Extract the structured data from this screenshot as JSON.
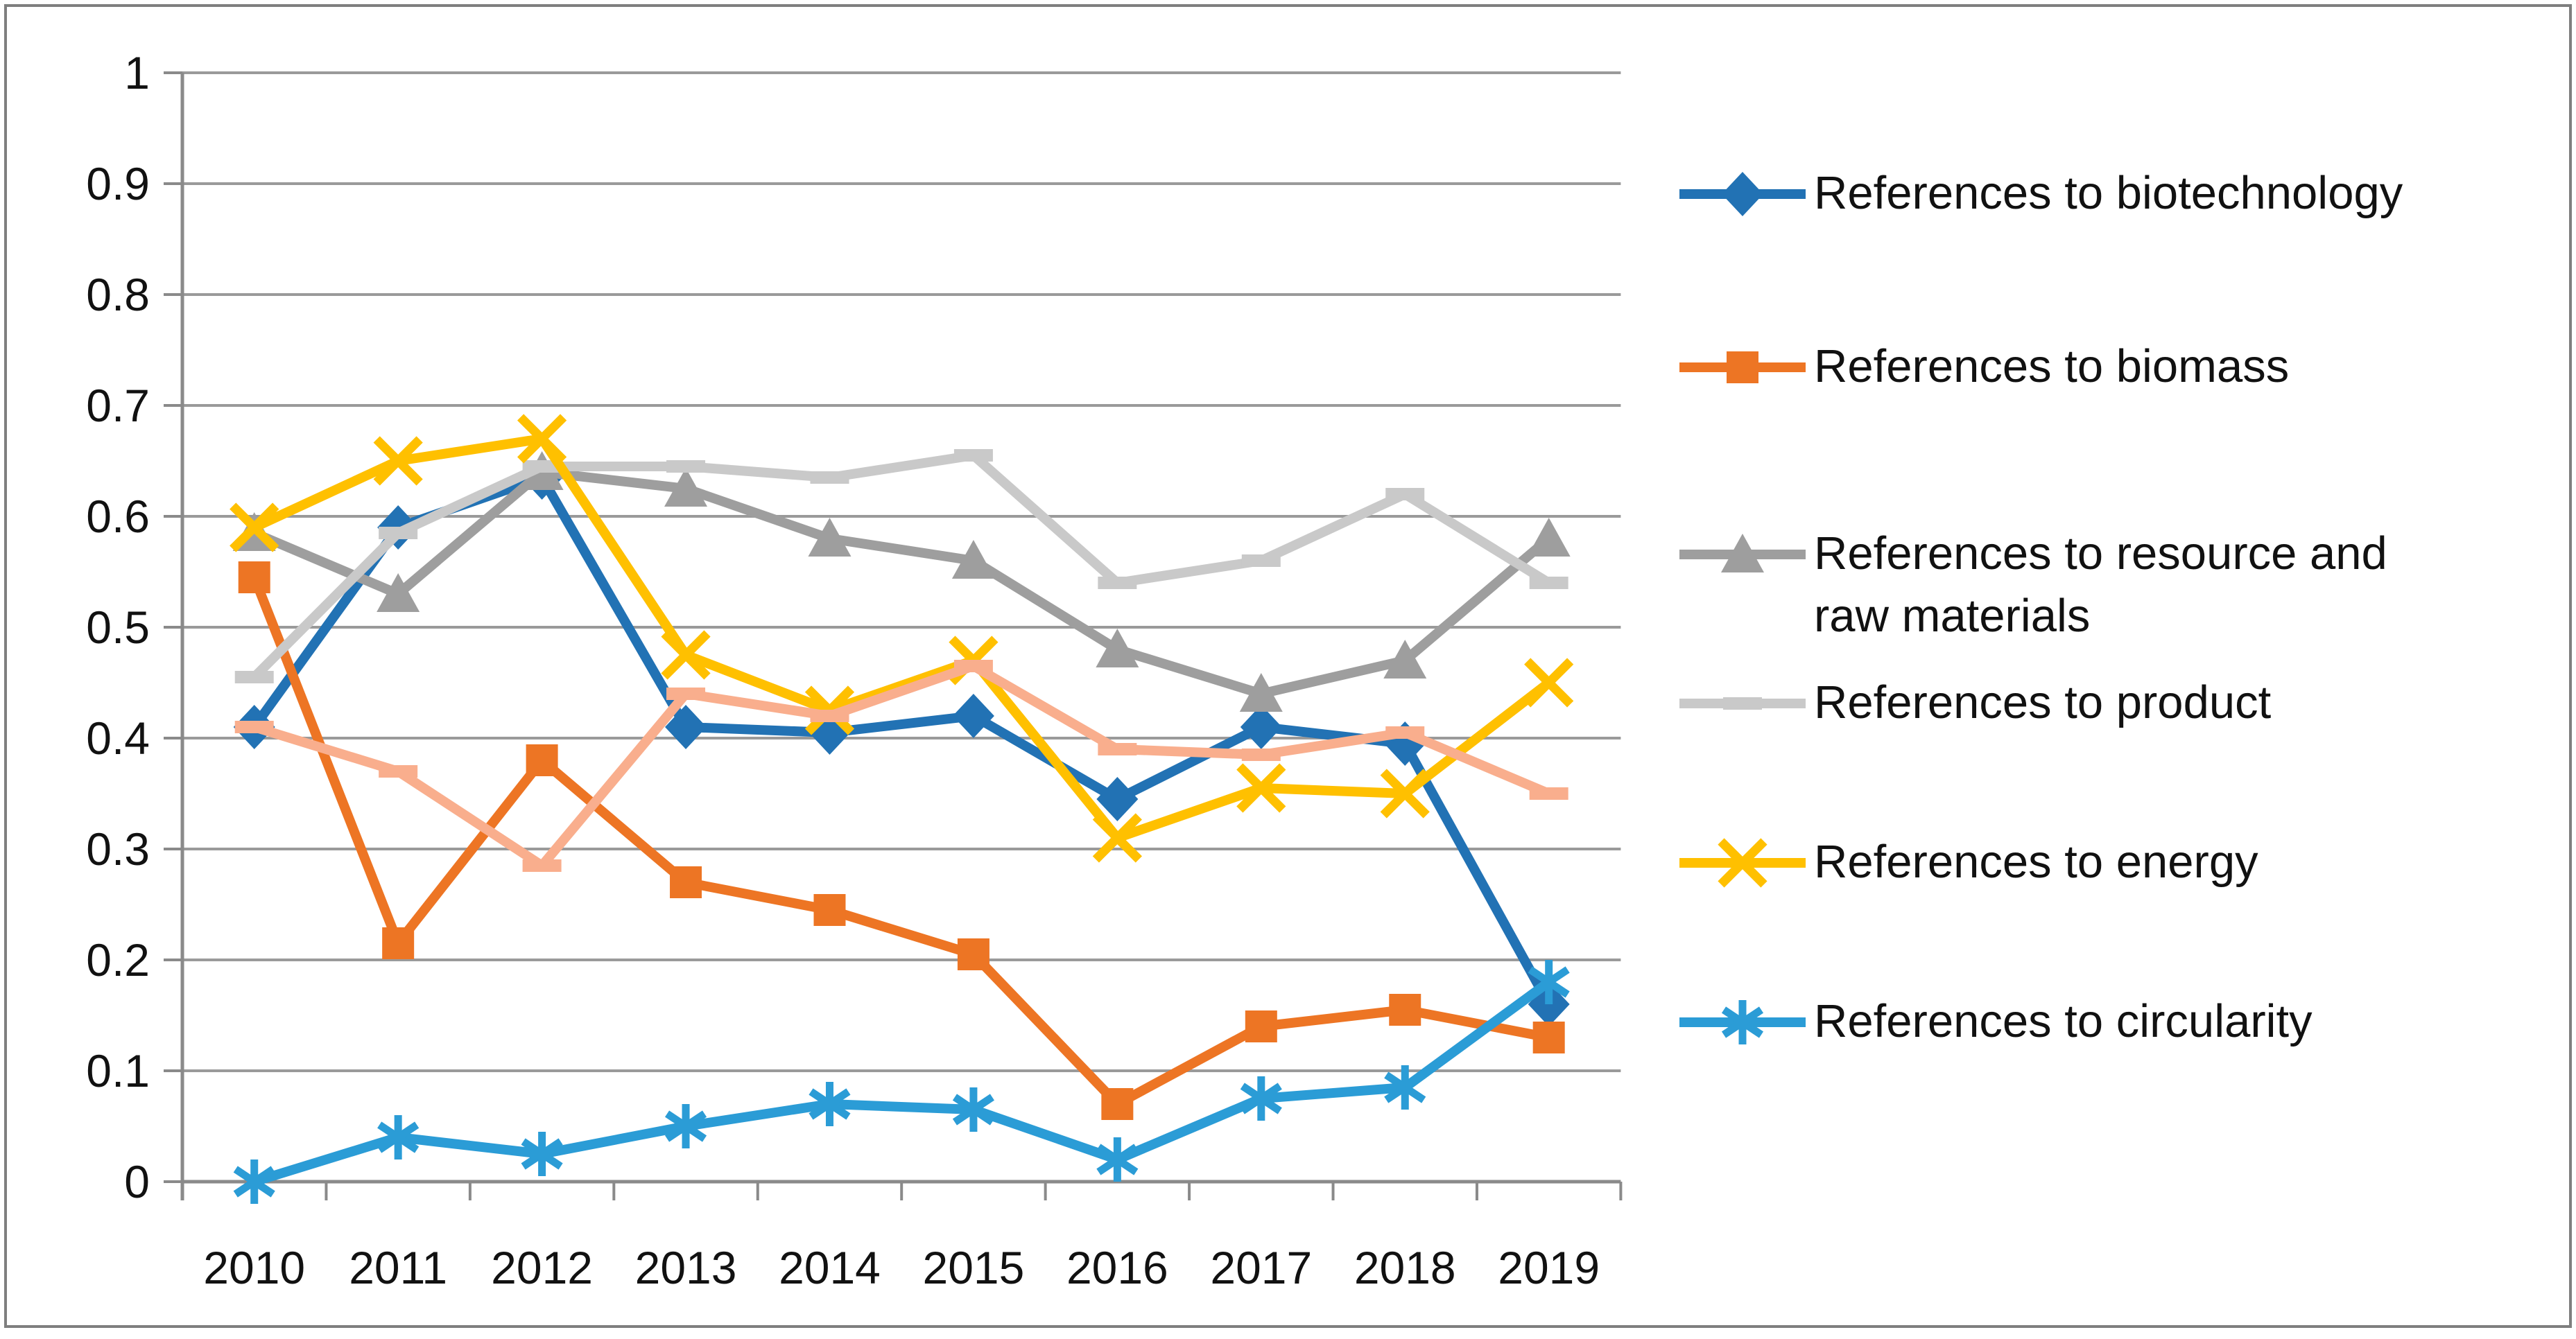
{
  "figure": {
    "kind": "excel-style line chart",
    "background": "#ffffff",
    "border_color": "#7f7f7f"
  },
  "axes": {
    "y_tick_labels": [
      "1",
      "0.9",
      "0.8",
      "0.7",
      "0.6",
      "0.5",
      "0.4",
      "0.3",
      "0.2",
      "0.1",
      "0"
    ],
    "x_tick_labels": [
      "2010",
      "2011",
      "2012",
      "2013",
      "2014",
      "2015",
      "2016",
      "2017",
      "2018",
      "2019"
    ],
    "grid_color": "#9a9a9a",
    "axis_color": "#8a8a8a",
    "label_color": "#111111"
  },
  "chart_data": {
    "type": "line",
    "title": "",
    "xlabel": "",
    "ylabel": "",
    "x": [
      2010,
      2011,
      2012,
      2013,
      2014,
      2015,
      2016,
      2017,
      2018,
      2019
    ],
    "ylim": [
      0,
      1
    ],
    "ytick_step": 0.1,
    "grid": true,
    "legend_position": "right",
    "series": [
      {
        "name": "References to biotechnology",
        "marker": "diamond",
        "color": "#2272b4",
        "in_legend": true,
        "values": [
          0.41,
          0.59,
          0.635,
          0.41,
          0.405,
          0.42,
          0.345,
          0.41,
          0.395,
          0.16
        ]
      },
      {
        "name": "References to biomass",
        "marker": "square",
        "color": "#ed7524",
        "in_legend": true,
        "values": [
          0.545,
          0.215,
          0.38,
          0.27,
          0.245,
          0.205,
          0.07,
          0.14,
          0.155,
          0.13
        ]
      },
      {
        "name": "References to resource and\nraw materials",
        "marker": "triangle",
        "color": "#9e9e9e",
        "in_legend": true,
        "values": [
          0.585,
          0.53,
          0.64,
          0.625,
          0.58,
          0.56,
          0.48,
          0.44,
          0.47,
          0.58
        ]
      },
      {
        "name": "References to product",
        "marker": "dash",
        "color": "#c9c9c9",
        "in_legend": true,
        "values": [
          0.455,
          0.585,
          0.645,
          0.645,
          0.635,
          0.655,
          0.54,
          0.56,
          0.62,
          0.54
        ]
      },
      {
        "name": "References to energy",
        "marker": "x",
        "color": "#ffc000",
        "in_legend": true,
        "values": [
          0.59,
          0.65,
          0.67,
          0.475,
          0.425,
          0.47,
          0.31,
          0.355,
          0.35,
          0.45
        ]
      },
      {
        "name": "References to circularity",
        "marker": "asterisk",
        "color": "#2b9cd6",
        "in_legend": true,
        "values": [
          0.0,
          0.04,
          0.025,
          0.05,
          0.07,
          0.065,
          0.02,
          0.075,
          0.085,
          0.18
        ]
      },
      {
        "name": "",
        "marker": "dash",
        "color": "#f9ae8d",
        "in_legend": false,
        "values": [
          0.41,
          0.37,
          0.285,
          0.44,
          0.42,
          0.465,
          0.39,
          0.385,
          0.405,
          0.35
        ]
      }
    ]
  }
}
